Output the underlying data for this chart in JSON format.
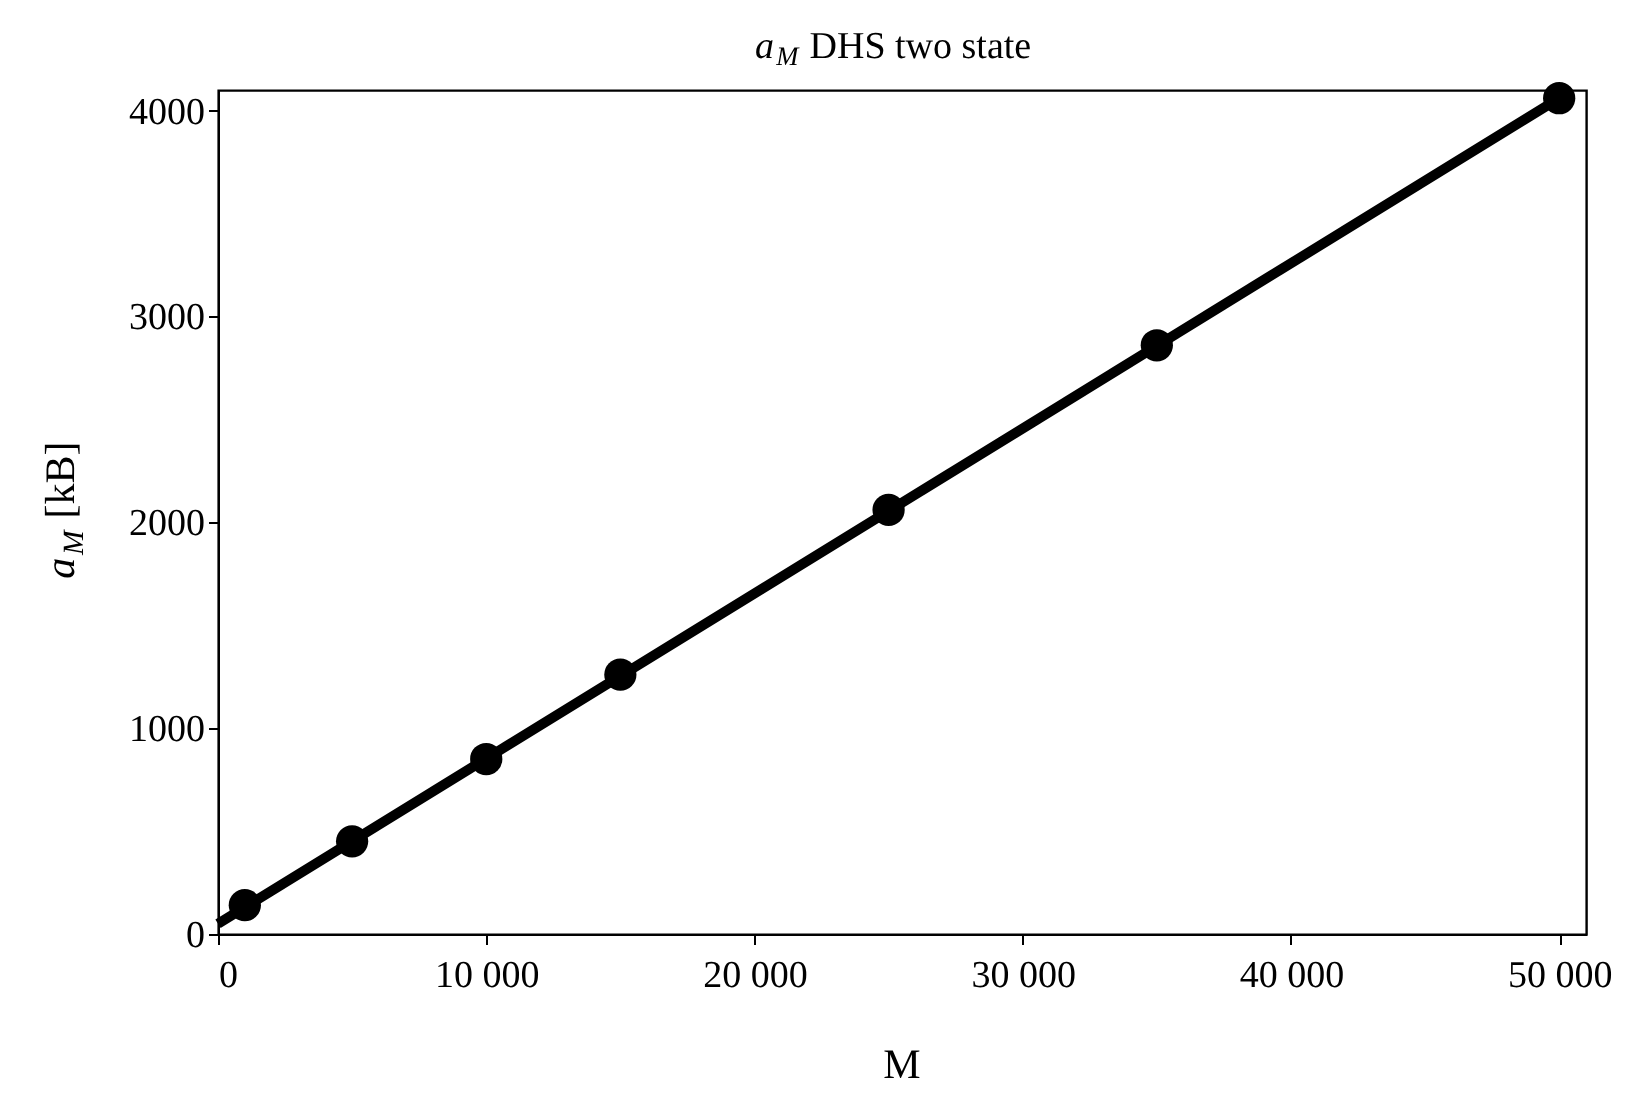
{
  "chart_data": {
    "type": "scatter",
    "title": "a$_{M}$ DHS two state",
    "xlabel": "M",
    "ylabel": "a$_{M}$ [kB]",
    "series": [
      {
        "color": "#000000",
        "marker": "circle",
        "x": [
          1000,
          5000,
          10000,
          15000,
          25000,
          35000,
          50000
        ],
        "values": [
          140,
          450,
          850,
          1260,
          2060,
          2860,
          4060
        ]
      },
      {
        "type": "line",
        "color": "#000000",
        "marker": "none",
        "line_style": "solid",
        "x": [
          0,
          50000
        ],
        "values": [
          50,
          4060
        ]
      }
    ],
    "xlim": [
      0,
      51000
    ],
    "ylim": [
      0,
      4100
    ],
    "xticks": [
      0,
      {
        "value": 10000,
        "label": "10 000"
      },
      {
        "value": 20000,
        "label": "20 000"
      },
      {
        "value": 30000,
        "label": "30 000"
      },
      {
        "value": 40000,
        "label": "40 000"
      },
      {
        "value": 50000,
        "label": "50 000"
      }
    ],
    "yticks": [
      0,
      1000,
      2000,
      3000,
      4000
    ],
    "grid": false
  }
}
